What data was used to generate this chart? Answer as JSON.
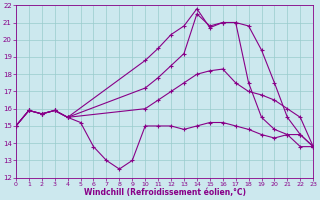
{
  "xlabel": "Windchill (Refroidissement éolien,°C)",
  "bg_color": "#cce8ee",
  "line_color": "#880088",
  "grid_color": "#99cccc",
  "xmin": 0,
  "xmax": 23,
  "ymin": 12,
  "ymax": 22,
  "lines": [
    {
      "x": [
        0,
        1,
        2,
        3,
        4,
        5,
        6,
        7,
        8,
        9,
        10,
        11,
        12,
        13,
        14,
        15,
        16,
        17,
        18,
        19,
        20,
        21,
        22,
        23
      ],
      "y": [
        15.0,
        15.9,
        15.7,
        15.9,
        15.5,
        15.2,
        13.8,
        13.0,
        12.5,
        13.0,
        15.0,
        15.0,
        15.0,
        14.8,
        15.0,
        15.2,
        15.2,
        15.0,
        14.8,
        14.5,
        14.3,
        14.5,
        13.8,
        13.8
      ]
    },
    {
      "x": [
        0,
        1,
        2,
        3,
        4,
        10,
        11,
        12,
        13,
        14,
        15,
        16,
        17,
        18,
        19,
        20,
        21,
        22,
        23
      ],
      "y": [
        15.0,
        15.9,
        15.7,
        15.9,
        15.5,
        18.8,
        19.5,
        20.3,
        20.8,
        21.8,
        20.7,
        21.0,
        21.0,
        20.8,
        19.4,
        17.5,
        15.5,
        14.5,
        13.8
      ]
    },
    {
      "x": [
        0,
        1,
        2,
        3,
        4,
        10,
        11,
        12,
        13,
        14,
        15,
        16,
        17,
        18,
        19,
        20,
        21,
        22,
        23
      ],
      "y": [
        15.0,
        15.9,
        15.7,
        15.9,
        15.5,
        17.2,
        17.8,
        18.5,
        19.2,
        21.5,
        20.8,
        21.0,
        21.0,
        17.5,
        15.5,
        14.8,
        14.5,
        14.5,
        13.8
      ]
    },
    {
      "x": [
        0,
        1,
        2,
        3,
        4,
        10,
        11,
        12,
        13,
        14,
        15,
        16,
        17,
        18,
        19,
        20,
        21,
        22,
        23
      ],
      "y": [
        15.0,
        15.9,
        15.7,
        15.9,
        15.5,
        16.0,
        16.5,
        17.0,
        17.5,
        18.0,
        18.2,
        18.3,
        17.5,
        17.0,
        16.8,
        16.5,
        16.0,
        15.5,
        13.8
      ]
    }
  ]
}
